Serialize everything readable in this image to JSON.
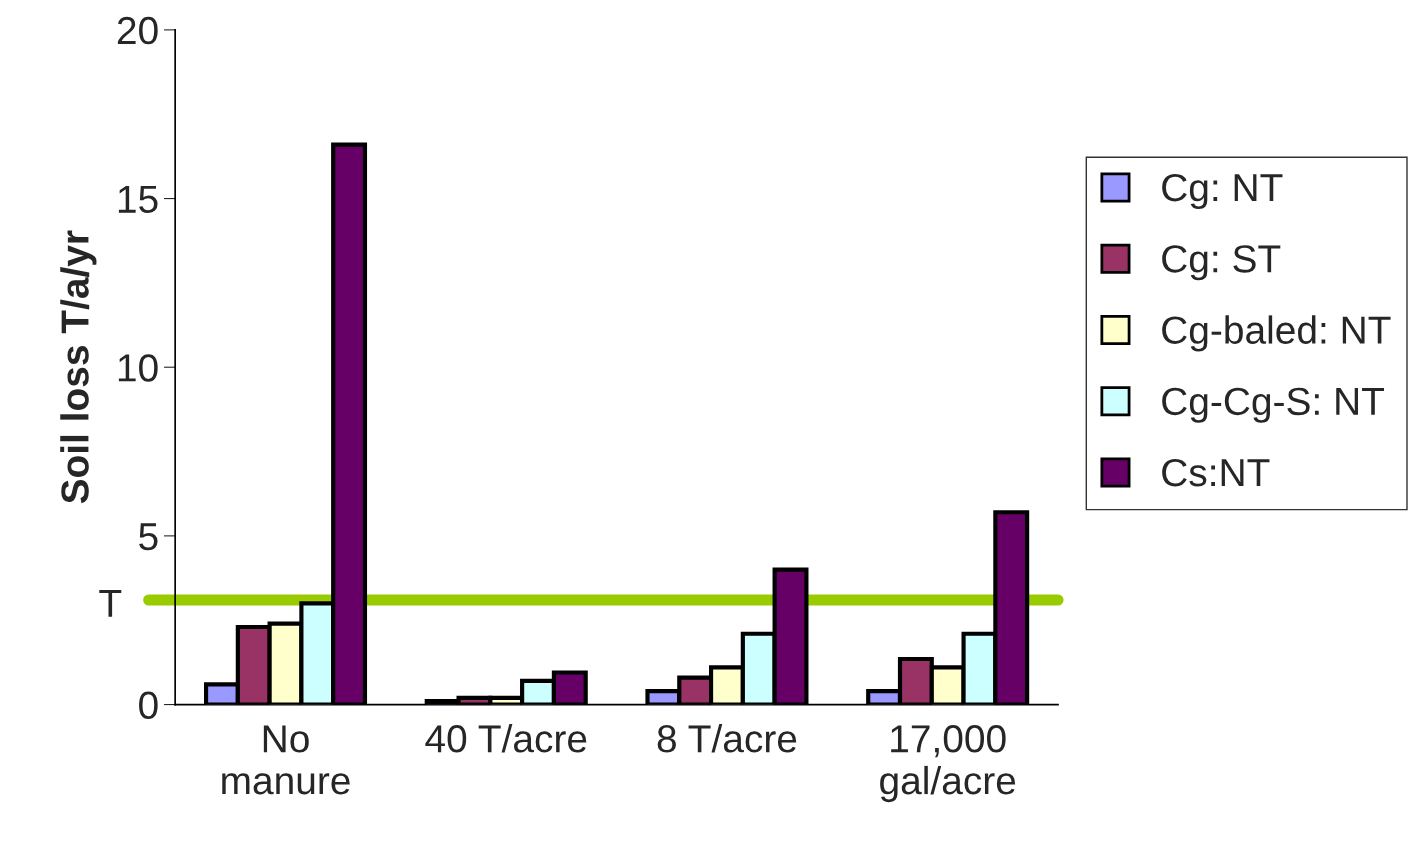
{
  "chart_data": {
    "type": "bar",
    "ylabel": "Soil loss T/a/yr",
    "categories": [
      "No\nmanure",
      "40 T/acre",
      "8 T/acre",
      "17,000\ngal/acre"
    ],
    "series": [
      {
        "name": "Cg: NT",
        "color": "#9999ff",
        "values": [
          0.6,
          0.1,
          0.4,
          0.4
        ]
      },
      {
        "name": "Cg: ST",
        "color": "#993366",
        "values": [
          2.3,
          0.2,
          0.8,
          1.35
        ]
      },
      {
        "name": "Cg-baled: NT",
        "color": "#ffffcc",
        "values": [
          2.4,
          0.2,
          1.1,
          1.1
        ]
      },
      {
        "name": "Cg-Cg-S: NT",
        "color": "#ccffff",
        "values": [
          3.0,
          0.7,
          2.1,
          2.1
        ]
      },
      {
        "name": "Cs:NT",
        "color": "#660066",
        "values": [
          16.6,
          0.95,
          4.0,
          5.7
        ]
      }
    ],
    "ylim": [
      0,
      20
    ],
    "yticks": [
      0,
      5,
      10,
      15,
      20
    ],
    "ref_lines": [
      {
        "axis": "y",
        "value": 3.1,
        "label": "T",
        "color": "#99cc00"
      }
    ],
    "grid": false,
    "legend": "right"
  }
}
